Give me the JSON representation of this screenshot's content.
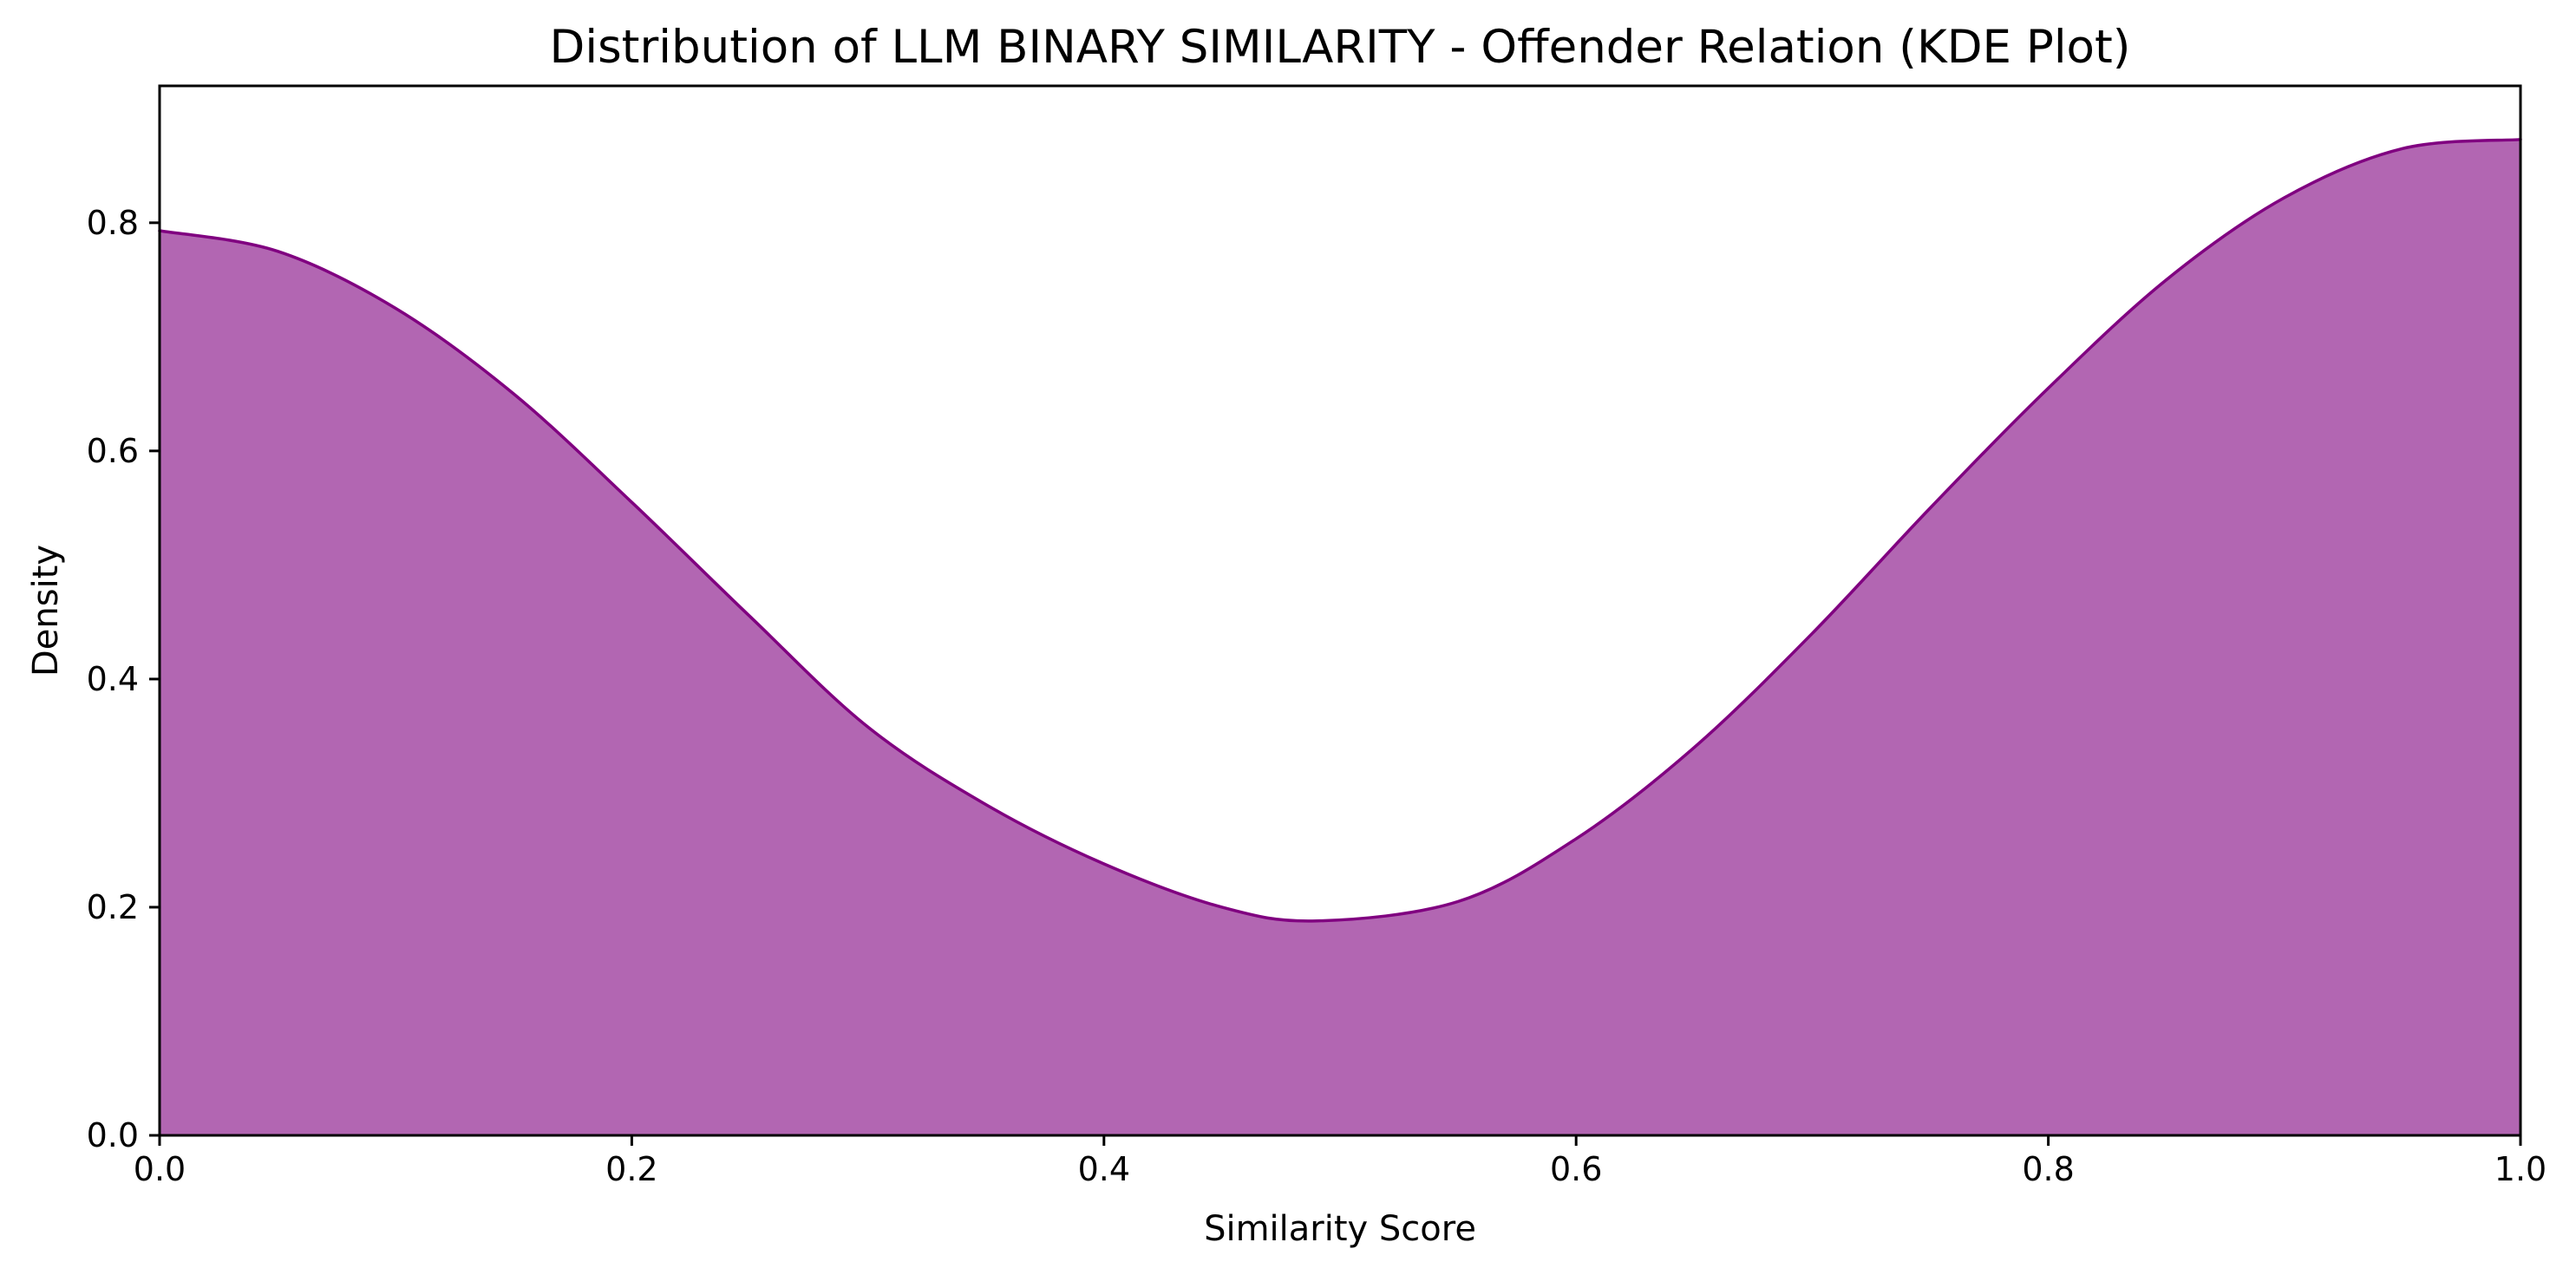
{
  "chart_data": {
    "type": "area",
    "title": "Distribution of LLM BINARY SIMILARITY - Offender Relation (KDE Plot)",
    "xlabel": "Similarity Score",
    "ylabel": "Density",
    "xlim": [
      0.0,
      1.0
    ],
    "ylim": [
      0.0,
      0.92
    ],
    "x_ticks": [
      "0.0",
      "0.2",
      "0.4",
      "0.6",
      "0.8",
      "1.0"
    ],
    "y_ticks": [
      "0.0",
      "0.2",
      "0.4",
      "0.6",
      "0.8"
    ],
    "grid": false,
    "legend": false,
    "colors": {
      "fill": "#b266b2",
      "line": "#800080",
      "axis": "#000000"
    },
    "series": [
      {
        "x": [
          0.0,
          0.05,
          0.1,
          0.15,
          0.2,
          0.25,
          0.3,
          0.35,
          0.4,
          0.45,
          0.49,
          0.55,
          0.6,
          0.65,
          0.7,
          0.75,
          0.8,
          0.85,
          0.9,
          0.95,
          1.0
        ],
        "y": [
          0.793,
          0.775,
          0.725,
          0.65,
          0.555,
          0.455,
          0.358,
          0.29,
          0.238,
          0.2,
          0.188,
          0.205,
          0.26,
          0.34,
          0.44,
          0.55,
          0.655,
          0.75,
          0.822,
          0.865,
          0.873
        ]
      }
    ]
  }
}
